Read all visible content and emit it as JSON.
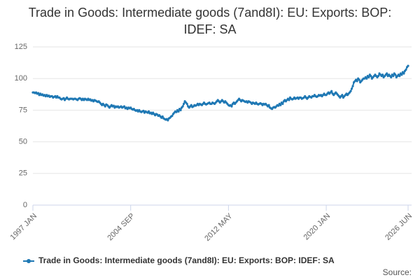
{
  "chart_data": {
    "type": "line",
    "title": "Trade in Goods: Intermediate goods (7and8I): EU: Exports: BOP: IDEF: SA",
    "source": "Source:",
    "categories": [
      "1997 JAN",
      null,
      null,
      null,
      null,
      null,
      null,
      null,
      null,
      null,
      null,
      null,
      null,
      null,
      null,
      null,
      null,
      null,
      null,
      null,
      null,
      null,
      null,
      null,
      null,
      null,
      null,
      null,
      null,
      null,
      null,
      null,
      null,
      null,
      null,
      null,
      null,
      null,
      null,
      null,
      null,
      null,
      null,
      null,
      null,
      null,
      null,
      null,
      null,
      null,
      null,
      null,
      null,
      null,
      null,
      null,
      null,
      null,
      null,
      null,
      null,
      null,
      null,
      null,
      null,
      null,
      null,
      null,
      null,
      null,
      null,
      null,
      null,
      null,
      null,
      null,
      null,
      null,
      null,
      null,
      null,
      null,
      null,
      null,
      null,
      null,
      null,
      null,
      null,
      null,
      null,
      null,
      "2004 SEP",
      null,
      null,
      null,
      null,
      null,
      null,
      null,
      null,
      null,
      null,
      null,
      null,
      null,
      null,
      null,
      null,
      null,
      null,
      null,
      null,
      null,
      null,
      null,
      null,
      null,
      null,
      null,
      null,
      null,
      null,
      null,
      null,
      null,
      null,
      null,
      null,
      null,
      null,
      null,
      null,
      null,
      null,
      null,
      null,
      null,
      null,
      null,
      null,
      null,
      null,
      null,
      null,
      null,
      null,
      null,
      null,
      null,
      null,
      null,
      null,
      null,
      null,
      null,
      null,
      null,
      null,
      null,
      null,
      null,
      null,
      null,
      null,
      null,
      null,
      null,
      null,
      null,
      null,
      null,
      null,
      null,
      null,
      null,
      null,
      null,
      null,
      null,
      null,
      null,
      null,
      null,
      "2012 MAY",
      null,
      null,
      null,
      null,
      null,
      null,
      null,
      null,
      null,
      null,
      null,
      null,
      null,
      null,
      null,
      null,
      null,
      null,
      null,
      null,
      null,
      null,
      null,
      null,
      null,
      null,
      null,
      null,
      null,
      null,
      null,
      null,
      null,
      null,
      null,
      null,
      null,
      null,
      null,
      null,
      null,
      null,
      null,
      null,
      null,
      null,
      null,
      null,
      null,
      null,
      null,
      null,
      null,
      null,
      null,
      null,
      null,
      null,
      null,
      null,
      null,
      null,
      null,
      null,
      null,
      null,
      null,
      null,
      null,
      null,
      null,
      null,
      null,
      null,
      null,
      null,
      null,
      null,
      null,
      null,
      null,
      null,
      null,
      null,
      null,
      null,
      null,
      null,
      null,
      null,
      null,
      "2020 JAN",
      null,
      null,
      null,
      null,
      null,
      null,
      null,
      null,
      null,
      null,
      null,
      null,
      null,
      null,
      null,
      null,
      null,
      null,
      null,
      null,
      null,
      null,
      null,
      null,
      null,
      null,
      null,
      null,
      null,
      null,
      null,
      null,
      null,
      null,
      null,
      null,
      null,
      null,
      null,
      null,
      null,
      null,
      null,
      null,
      null,
      null,
      null,
      null,
      null,
      null,
      null,
      null,
      null,
      null,
      null,
      null,
      null,
      null,
      null,
      null,
      null,
      null,
      null,
      null,
      null,
      null,
      null,
      null,
      null,
      null,
      null,
      null,
      null,
      null,
      null,
      null,
      "2026 JUN"
    ],
    "series": [
      {
        "name": "Trade in Goods: Intermediate goods (7and8I): EU: Exports: BOP: IDEF: SA",
        "color": "#1f78b4",
        "values": [
          89,
          89,
          88.5,
          89,
          88,
          88.5,
          87,
          88,
          87,
          87.5,
          86.5,
          87,
          86,
          87,
          86,
          86.5,
          85.5,
          86,
          86,
          85,
          85.5,
          86,
          85,
          86,
          85,
          85,
          84,
          83.5,
          84,
          84.5,
          83,
          84,
          85,
          84,
          83.5,
          84,
          84,
          84,
          83.5,
          84,
          84,
          83.5,
          83,
          84,
          84.5,
          84,
          83,
          84,
          83,
          84,
          83.5,
          83,
          84,
          83,
          83.5,
          82.5,
          83,
          82,
          83,
          82.5,
          82,
          81.5,
          82,
          81,
          80,
          79,
          80,
          79,
          78,
          79.5,
          79,
          78,
          77,
          78,
          79,
          78,
          78.5,
          77,
          78,
          77.5,
          78,
          77,
          77.5,
          78,
          77,
          77.5,
          78,
          76.5,
          77,
          76,
          77,
          76.5,
          77,
          76,
          75.5,
          76,
          75,
          74.5,
          75,
          74,
          75,
          74,
          73.5,
          74,
          74.5,
          73,
          74,
          73.5,
          73,
          74,
          72.5,
          73,
          72,
          73,
          72,
          71,
          72,
          71.5,
          70.5,
          71,
          70,
          69,
          70,
          68.5,
          68,
          67.5,
          68,
          67,
          68.5,
          69,
          70,
          70.5,
          72,
          73,
          74,
          73.5,
          75,
          74,
          76,
          75,
          77,
          78,
          80,
          82,
          81,
          80,
          78,
          77,
          78,
          79,
          77.5,
          78,
          79,
          78.5,
          79,
          80,
          79,
          80,
          79.5,
          79,
          80,
          81,
          80,
          79.5,
          80,
          80.5,
          81,
          80,
          80,
          81,
          80.5,
          80,
          81,
          82,
          83,
          82,
          81,
          82,
          83,
          82,
          81,
          82,
          81,
          80,
          79,
          78.5,
          79,
          78,
          80,
          81,
          80,
          81,
          82,
          83,
          84,
          83,
          82,
          83,
          82.5,
          82,
          81.5,
          82,
          81,
          82,
          81.5,
          81,
          80,
          81,
          80.5,
          80,
          81,
          80,
          79.5,
          80,
          80.5,
          80,
          79,
          80,
          79.5,
          80,
          79,
          78,
          79,
          77,
          76.5,
          76,
          77,
          77.5,
          77,
          78,
          79,
          78.5,
          80,
          79,
          81,
          80,
          82,
          83,
          82,
          83,
          84,
          83,
          85,
          84,
          83.5,
          84,
          85,
          84,
          84.5,
          85,
          84,
          85,
          85,
          84,
          84.5,
          85,
          86,
          85,
          84,
          85,
          86,
          85.5,
          85,
          86,
          86,
          87,
          86,
          85.5,
          86,
          87,
          86.5,
          87,
          86,
          87,
          88,
          87,
          87,
          88,
          89,
          88,
          89,
          90,
          88,
          87,
          88,
          89,
          88,
          87,
          86,
          85,
          86,
          87,
          85,
          86,
          87,
          88,
          87,
          88,
          89,
          90,
          92,
          94,
          97,
          98,
          99,
          98,
          100,
          99,
          97,
          98,
          99,
          100,
          100,
          101,
          100,
          102,
          101,
          103,
          102,
          100,
          101,
          102,
          103,
          102,
          101,
          102,
          104,
          103,
          102,
          103,
          101,
          102,
          103,
          104,
          102,
          103,
          102,
          101,
          103,
          102,
          104,
          103,
          101,
          102,
          103,
          102,
          104,
          103,
          105,
          104,
          106,
          107,
          109,
          110
        ]
      }
    ],
    "ylim": [
      0,
      125
    ],
    "yticks": [
      0,
      25,
      50,
      75,
      100,
      125
    ],
    "grid": true
  }
}
